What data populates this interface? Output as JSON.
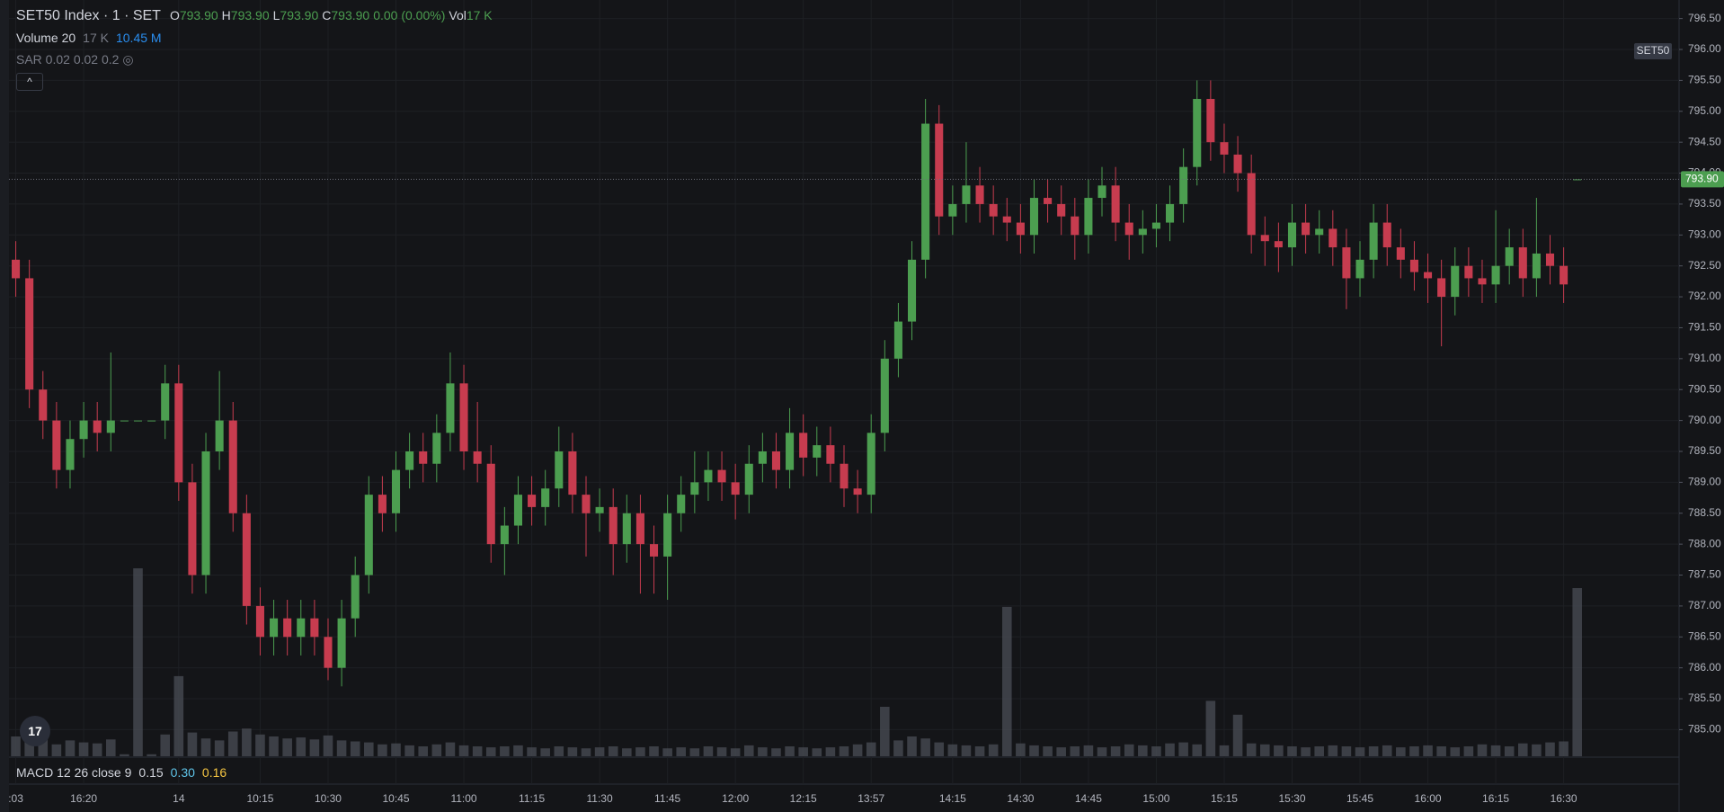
{
  "header": {
    "title": "SET50 Index · 1 · SET",
    "o_label": "O",
    "o_value": "793.90",
    "h_label": "H",
    "h_value": "793.90",
    "l_label": "L",
    "l_value": "793.90",
    "c_label": "C",
    "c_value": "793.90",
    "change": "0.00 (0.00%)",
    "vol_label": "Vol",
    "vol_value": "17 K",
    "volume_study": "Volume 20",
    "volume_value": "17 K",
    "volume_ma": "10.45 M",
    "sar_study": "SAR 0.02 0.02 0.2",
    "macd_study": "MACD 12 26 close 9",
    "macd_a": "0.15",
    "macd_b": "0.30",
    "macd_c": "0.16",
    "symbol_badge": "SET50",
    "price_badge": "793.90"
  },
  "chart_data": {
    "type": "candlestick",
    "up_color": "#4c9e50",
    "down_color": "#c73c4f",
    "volume_color": "#4a4d55",
    "grid": true,
    "ylim": [
      784.57,
      796.8
    ],
    "yticks": [
      {
        "value": 785,
        "label": "785.00"
      },
      {
        "value": 785.5,
        "label": "785.50"
      },
      {
        "value": 786,
        "label": "786.00"
      },
      {
        "value": 786.5,
        "label": "786.50"
      },
      {
        "value": 787,
        "label": "787.00"
      },
      {
        "value": 787.5,
        "label": "787.50"
      },
      {
        "value": 788,
        "label": "788.00"
      },
      {
        "value": 788.5,
        "label": "788.50"
      },
      {
        "value": 789,
        "label": "789.00"
      },
      {
        "value": 789.5,
        "label": "789.50"
      },
      {
        "value": 790,
        "label": "790.00"
      },
      {
        "value": 790.5,
        "label": "790.50"
      },
      {
        "value": 791,
        "label": "791.00"
      },
      {
        "value": 791.5,
        "label": "791.50"
      },
      {
        "value": 792,
        "label": "792.00"
      },
      {
        "value": 792.5,
        "label": "792.50"
      },
      {
        "value": 793,
        "label": "793.00"
      },
      {
        "value": 793.5,
        "label": "793.50"
      },
      {
        "value": 794,
        "label": "794.00"
      },
      {
        "value": 794.5,
        "label": "794.50"
      },
      {
        "value": 795,
        "label": "795.00"
      },
      {
        "value": 795.5,
        "label": "795.50"
      },
      {
        "value": 796,
        "label": "796.00"
      },
      {
        "value": 796.5,
        "label": "796.50"
      }
    ],
    "categories": [
      ":03",
      null,
      null,
      null,
      null,
      "16:20",
      null,
      null,
      null,
      null,
      null,
      null,
      "14",
      null,
      null,
      null,
      null,
      null,
      "10:15",
      null,
      null,
      null,
      null,
      "10:30",
      null,
      null,
      null,
      null,
      "10:45",
      null,
      null,
      null,
      null,
      "11:00",
      null,
      null,
      null,
      null,
      "11:15",
      null,
      null,
      null,
      null,
      "11:30",
      null,
      null,
      null,
      null,
      "11:45",
      null,
      null,
      null,
      null,
      "12:00",
      null,
      null,
      null,
      null,
      "12:15",
      null,
      null,
      null,
      null,
      "13:57",
      null,
      null,
      null,
      null,
      null,
      "14:15",
      null,
      null,
      null,
      null,
      "14:30",
      null,
      null,
      null,
      null,
      "14:45",
      null,
      null,
      null,
      null,
      "15:00",
      null,
      null,
      null,
      null,
      "15:15",
      null,
      null,
      null,
      null,
      "15:30",
      null,
      null,
      null,
      null,
      "15:45",
      null,
      null,
      null,
      null,
      "16:00",
      null,
      null,
      null,
      null,
      "16:15",
      null,
      null,
      null,
      null,
      "16:30",
      null
    ],
    "candles": [
      [
        792.6,
        792.9,
        792.0,
        792.3
      ],
      [
        792.3,
        792.6,
        790.2,
        790.5
      ],
      [
        790.5,
        790.8,
        789.7,
        790.0
      ],
      [
        790.0,
        790.3,
        788.9,
        789.2
      ],
      [
        789.2,
        790.0,
        788.9,
        789.7
      ],
      [
        789.7,
        790.3,
        789.4,
        790.0
      ],
      [
        790.0,
        790.3,
        789.5,
        789.8
      ],
      [
        789.8,
        791.1,
        789.5,
        790.0
      ],
      [
        790.0,
        790.0,
        790.0,
        790.0
      ],
      [
        790.0,
        790.0,
        790.0,
        790.0
      ],
      [
        790.0,
        790.0,
        790.0,
        790.0
      ],
      [
        790.0,
        790.9,
        789.7,
        790.6
      ],
      [
        790.6,
        790.9,
        788.7,
        789.0
      ],
      [
        789.0,
        789.3,
        787.2,
        787.5
      ],
      [
        787.5,
        789.8,
        787.2,
        789.5
      ],
      [
        789.5,
        790.8,
        789.2,
        790.0
      ],
      [
        790.0,
        790.3,
        788.2,
        788.5
      ],
      [
        788.5,
        788.8,
        786.7,
        787.0
      ],
      [
        787.0,
        787.3,
        786.2,
        786.5
      ],
      [
        786.5,
        787.1,
        786.2,
        786.8
      ],
      [
        786.8,
        787.1,
        786.2,
        786.5
      ],
      [
        786.5,
        787.1,
        786.2,
        786.8
      ],
      [
        786.8,
        787.1,
        786.2,
        786.5
      ],
      [
        786.5,
        786.8,
        785.8,
        786.0
      ],
      [
        786.0,
        787.1,
        785.7,
        786.8
      ],
      [
        786.8,
        787.8,
        786.5,
        787.5
      ],
      [
        787.5,
        789.1,
        787.2,
        788.8
      ],
      [
        788.8,
        789.1,
        788.2,
        788.5
      ],
      [
        788.5,
        789.5,
        788.2,
        789.2
      ],
      [
        789.2,
        789.8,
        788.9,
        789.5
      ],
      [
        789.5,
        789.8,
        789.0,
        789.3
      ],
      [
        789.3,
        790.1,
        789.0,
        789.8
      ],
      [
        789.8,
        791.1,
        789.5,
        790.6
      ],
      [
        790.6,
        790.9,
        789.2,
        789.5
      ],
      [
        789.5,
        790.3,
        789.0,
        789.3
      ],
      [
        789.3,
        789.6,
        787.7,
        788.0
      ],
      [
        788.0,
        788.6,
        787.5,
        788.3
      ],
      [
        788.3,
        789.1,
        788.0,
        788.8
      ],
      [
        788.8,
        789.1,
        788.3,
        788.6
      ],
      [
        788.6,
        789.2,
        788.3,
        788.9
      ],
      [
        788.9,
        789.9,
        788.6,
        789.5
      ],
      [
        789.5,
        789.8,
        788.5,
        788.8
      ],
      [
        788.8,
        789.1,
        787.8,
        788.5
      ],
      [
        788.5,
        788.9,
        788.2,
        788.6
      ],
      [
        788.6,
        788.9,
        787.5,
        788.0
      ],
      [
        788.0,
        788.8,
        787.7,
        788.5
      ],
      [
        788.5,
        788.8,
        787.2,
        788.0
      ],
      [
        788.0,
        788.3,
        787.2,
        787.8
      ],
      [
        787.8,
        788.8,
        787.1,
        788.5
      ],
      [
        788.5,
        789.1,
        788.2,
        788.8
      ],
      [
        788.8,
        789.5,
        788.5,
        789.0
      ],
      [
        789.0,
        789.5,
        788.7,
        789.2
      ],
      [
        789.2,
        789.5,
        788.7,
        789.0
      ],
      [
        789.0,
        789.3,
        788.4,
        788.8
      ],
      [
        788.8,
        789.6,
        788.5,
        789.3
      ],
      [
        789.3,
        789.8,
        789.0,
        789.5
      ],
      [
        789.5,
        789.8,
        788.9,
        789.2
      ],
      [
        789.2,
        790.2,
        788.9,
        789.8
      ],
      [
        789.8,
        790.1,
        789.1,
        789.4
      ],
      [
        789.4,
        789.9,
        789.1,
        789.6
      ],
      [
        789.6,
        789.9,
        789.0,
        789.3
      ],
      [
        789.3,
        789.6,
        788.6,
        788.9
      ],
      [
        788.9,
        789.2,
        788.5,
        788.8
      ],
      [
        788.8,
        790.1,
        788.5,
        789.8
      ],
      [
        789.8,
        791.3,
        789.5,
        791.0
      ],
      [
        791.0,
        791.9,
        790.7,
        791.6
      ],
      [
        791.6,
        792.9,
        791.3,
        792.6
      ],
      [
        792.6,
        795.2,
        792.3,
        794.8
      ],
      [
        794.8,
        795.1,
        793.0,
        793.3
      ],
      [
        793.3,
        793.8,
        793.0,
        793.5
      ],
      [
        793.5,
        794.5,
        793.2,
        793.8
      ],
      [
        793.8,
        794.1,
        793.2,
        793.5
      ],
      [
        793.5,
        793.8,
        793.0,
        793.3
      ],
      [
        793.3,
        793.6,
        792.9,
        793.2
      ],
      [
        793.2,
        793.5,
        792.7,
        793.0
      ],
      [
        793.0,
        793.9,
        792.7,
        793.6
      ],
      [
        793.6,
        793.9,
        793.2,
        793.5
      ],
      [
        793.5,
        793.8,
        793.0,
        793.3
      ],
      [
        793.3,
        793.6,
        792.6,
        793.0
      ],
      [
        793.0,
        793.9,
        792.7,
        793.6
      ],
      [
        793.6,
        794.1,
        793.3,
        793.8
      ],
      [
        793.8,
        794.1,
        792.9,
        793.2
      ],
      [
        793.2,
        793.5,
        792.6,
        793.0
      ],
      [
        793.0,
        793.4,
        792.7,
        793.1
      ],
      [
        793.1,
        793.5,
        792.8,
        793.2
      ],
      [
        793.2,
        793.8,
        792.9,
        793.5
      ],
      [
        793.5,
        794.4,
        793.2,
        794.1
      ],
      [
        794.1,
        795.5,
        793.8,
        795.2
      ],
      [
        795.2,
        795.5,
        794.2,
        794.5
      ],
      [
        794.5,
        794.8,
        794.0,
        794.3
      ],
      [
        794.3,
        794.6,
        793.7,
        794.0
      ],
      [
        794.0,
        794.3,
        792.7,
        793.0
      ],
      [
        793.0,
        793.3,
        792.5,
        792.9
      ],
      [
        792.9,
        793.2,
        792.4,
        792.8
      ],
      [
        792.8,
        793.5,
        792.5,
        793.2
      ],
      [
        793.2,
        793.5,
        792.7,
        793.0
      ],
      [
        793.0,
        793.4,
        792.7,
        793.1
      ],
      [
        793.1,
        793.4,
        792.5,
        792.8
      ],
      [
        792.8,
        793.1,
        791.8,
        792.3
      ],
      [
        792.3,
        792.9,
        792.0,
        792.6
      ],
      [
        792.6,
        793.5,
        792.3,
        793.2
      ],
      [
        793.2,
        793.5,
        792.5,
        792.8
      ],
      [
        792.8,
        793.1,
        792.3,
        792.6
      ],
      [
        792.6,
        792.9,
        792.1,
        792.4
      ],
      [
        792.4,
        792.7,
        791.9,
        792.3
      ],
      [
        792.3,
        792.6,
        791.2,
        792.0
      ],
      [
        792.0,
        792.8,
        791.7,
        792.5
      ],
      [
        792.5,
        792.8,
        792.0,
        792.3
      ],
      [
        792.3,
        792.6,
        791.9,
        792.2
      ],
      [
        792.2,
        793.4,
        791.9,
        792.5
      ],
      [
        792.5,
        793.1,
        792.2,
        792.8
      ],
      [
        792.8,
        793.1,
        792.0,
        792.3
      ],
      [
        792.3,
        793.6,
        792.0,
        792.7
      ],
      [
        792.7,
        793.0,
        792.2,
        792.5
      ],
      [
        792.5,
        792.8,
        791.9,
        792.2
      ],
      [
        793.9,
        793.9,
        793.9,
        793.9
      ]
    ],
    "volumes": [
      2.0,
      1.5,
      1.8,
      1.2,
      1.6,
      1.4,
      1.3,
      1.7,
      0.2,
      19.0,
      0.2,
      2.2,
      8.1,
      2.4,
      1.8,
      1.6,
      2.5,
      2.8,
      2.2,
      2.0,
      1.8,
      1.9,
      1.7,
      2.1,
      1.6,
      1.5,
      1.4,
      1.2,
      1.3,
      1.1,
      1.0,
      1.2,
      1.4,
      1.1,
      1.0,
      0.9,
      1.0,
      1.1,
      0.9,
      0.8,
      1.0,
      0.9,
      0.8,
      0.9,
      1.0,
      0.8,
      0.9,
      1.0,
      0.8,
      0.9,
      0.8,
      1.0,
      0.9,
      0.8,
      1.1,
      0.9,
      0.8,
      1.0,
      0.9,
      0.8,
      0.9,
      1.0,
      1.2,
      1.4,
      5.0,
      1.6,
      2.0,
      1.8,
      1.4,
      1.2,
      1.1,
      1.0,
      1.2,
      15.1,
      1.3,
      1.1,
      1.0,
      0.9,
      1.0,
      1.1,
      0.9,
      1.0,
      1.2,
      1.1,
      1.0,
      1.3,
      1.4,
      1.2,
      5.6,
      1.1,
      4.2,
      1.3,
      1.2,
      1.1,
      1.0,
      0.9,
      1.0,
      1.1,
      1.0,
      0.9,
      1.0,
      1.1,
      0.9,
      1.0,
      1.1,
      1.0,
      0.9,
      1.0,
      1.2,
      1.1,
      1.0,
      1.3,
      1.2,
      1.4,
      1.5,
      17.0
    ]
  }
}
